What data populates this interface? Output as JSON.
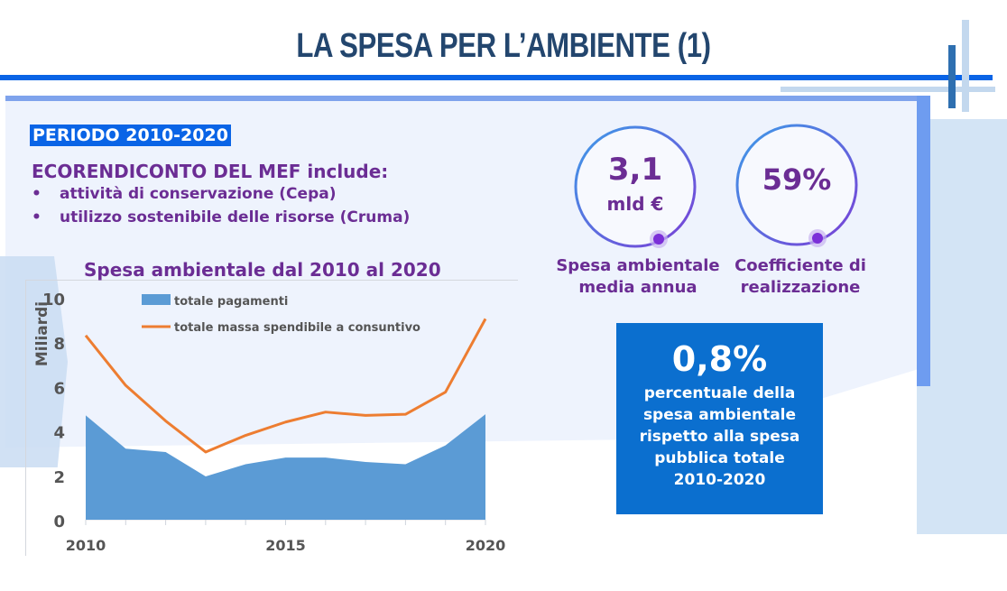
{
  "slide": {
    "title": "LA SPESA PER L’AMBIENTE (1)"
  },
  "intro": {
    "period_badge": "PERIODO 2010-2020",
    "heading": "ECORENDICONTO DEL MEF include:",
    "bullets": [
      "attività di conservazione (Cepa)",
      "utilizzo sostenibile delle risorse (Cruma)"
    ],
    "bullet_glyph": "•"
  },
  "kpis": [
    {
      "value": "3,1",
      "unit": "mld €",
      "label_line1": "Spesa ambientale",
      "label_line2": "media annua"
    },
    {
      "value": "59%",
      "unit": "",
      "label_line1": "Coefficiente di",
      "label_line2": "realizzazione"
    }
  ],
  "infobox": {
    "value": "0,8%",
    "lines": [
      "percentuale della",
      "spesa ambientale",
      "rispetto alla spesa",
      "pubblica totale",
      "2010-2020"
    ]
  },
  "colors": {
    "title": "#23466e",
    "accent_blue": "#0a64e6",
    "purple": "#6b2d94",
    "area_fill": "#5b9bd5",
    "line_orange": "#ed7d31",
    "infobox_bg": "#0b6fcf"
  },
  "chart_data": {
    "type": "area",
    "title": "Spesa ambientale dal 2010 al 2020",
    "xlabel": "",
    "ylabel": "Miliardi",
    "x": [
      2010,
      2011,
      2012,
      2013,
      2014,
      2015,
      2016,
      2017,
      2018,
      2019,
      2020
    ],
    "x_tick_labels": [
      "2010",
      "2015",
      "2020"
    ],
    "y_ticks": [
      0,
      2,
      4,
      6,
      8,
      10
    ],
    "ylim": [
      0,
      10
    ],
    "grid": false,
    "legend_position": "top",
    "series": [
      {
        "name": "totale pagamenti",
        "type": "area",
        "values": [
          4.7,
          3.2,
          3.05,
          1.95,
          2.5,
          2.8,
          2.8,
          2.6,
          2.5,
          3.35,
          4.75
        ]
      },
      {
        "name": "totale massa spendibile a consuntivo",
        "type": "line",
        "values": [
          8.3,
          6.05,
          4.45,
          3.05,
          3.8,
          4.4,
          4.85,
          4.7,
          4.75,
          5.75,
          9.05
        ]
      }
    ]
  }
}
